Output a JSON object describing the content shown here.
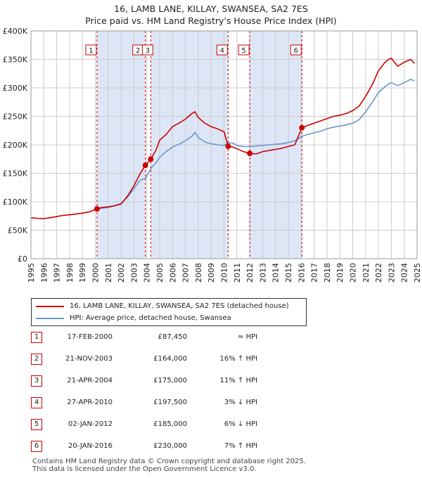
{
  "title_line1": "16, LAMB LANE, KILLAY, SWANSEA, SA2 7ES",
  "title_line2": "Price paid vs. HM Land Registry's House Price Index (HPI)",
  "colors": {
    "property": "#cc0000",
    "hpi": "#6a96cc",
    "shade": "#dde6f6",
    "grid": "#cccccc"
  },
  "legend": {
    "property": "16, LAMB LANE, KILLAY, SWANSEA, SA2 7ES (detached house)",
    "hpi": "HPI: Average price, detached house, Swansea"
  },
  "sales": [
    {
      "n": "1",
      "date": "17-FEB-2000",
      "price": "£87,450",
      "rel": "≈ HPI"
    },
    {
      "n": "2",
      "date": "21-NOV-2003",
      "price": "£164,000",
      "rel": "16% ↑ HPI"
    },
    {
      "n": "3",
      "date": "21-APR-2004",
      "price": "£175,000",
      "rel": "11% ↑ HPI"
    },
    {
      "n": "4",
      "date": "27-APR-2010",
      "price": "£197,500",
      "rel": "3% ↓ HPI"
    },
    {
      "n": "5",
      "date": "02-JAN-2012",
      "price": "£185,000",
      "rel": "6% ↓ HPI"
    },
    {
      "n": "6",
      "date": "20-JAN-2016",
      "price": "£230,000",
      "rel": "7% ↑ HPI"
    }
  ],
  "footer_line1": "Contains HM Land Registry data © Crown copyright and database right 2025.",
  "footer_line2": "This data is licensed under the Open Government Licence v3.0.",
  "chart_data": {
    "type": "line",
    "title": "16, LAMB LANE, KILLAY, SWANSEA, SA2 7ES — Price paid vs. HM Land Registry's House Price Index (HPI)",
    "xlim": [
      1995,
      2025
    ],
    "ylim": [
      0,
      400000
    ],
    "yticks": [
      {
        "v": 0,
        "label": "£0"
      },
      {
        "v": 50000,
        "label": "£50K"
      },
      {
        "v": 100000,
        "label": "£100K"
      },
      {
        "v": 150000,
        "label": "£150K"
      },
      {
        "v": 200000,
        "label": "£200K"
      },
      {
        "v": 250000,
        "label": "£250K"
      },
      {
        "v": 300000,
        "label": "£300K"
      },
      {
        "v": 350000,
        "label": "£350K"
      },
      {
        "v": 400000,
        "label": "£400K"
      }
    ],
    "xticks": [
      "1995",
      "1996",
      "1997",
      "1998",
      "1999",
      "2000",
      "2001",
      "2002",
      "2003",
      "2004",
      "2005",
      "2006",
      "2007",
      "2008",
      "2009",
      "2010",
      "2011",
      "2012",
      "2013",
      "2014",
      "2015",
      "2016",
      "2017",
      "2018",
      "2019",
      "2020",
      "2021",
      "2022",
      "2023",
      "2024",
      "2025"
    ],
    "shaded_periods": [
      [
        2000.13,
        2003.89
      ],
      [
        2004.31,
        2010.32
      ],
      [
        2012.0,
        2016.05
      ]
    ],
    "sale_markers": [
      {
        "label": "1",
        "x": 2000.13,
        "y": 87450
      },
      {
        "label": "2",
        "x": 2003.89,
        "y": 164000
      },
      {
        "label": "3",
        "x": 2004.31,
        "y": 175000
      },
      {
        "label": "4",
        "x": 2010.32,
        "y": 197500
      },
      {
        "label": "5",
        "x": 2012.0,
        "y": 185000
      },
      {
        "label": "6",
        "x": 2016.05,
        "y": 230000
      }
    ],
    "series": [
      {
        "name": "16, LAMB LANE, KILLAY, SWANSEA, SA2 7ES (detached house)",
        "color": "#cc0000",
        "x": [
          1995.0,
          1995.5,
          1996.0,
          1996.5,
          1997.0,
          1997.5,
          1998.0,
          1998.5,
          1999.0,
          1999.5,
          2000.13,
          2000.5,
          2001.0,
          2001.5,
          2002.0,
          2002.5,
          2003.0,
          2003.5,
          2003.89,
          2004.31,
          2004.7,
          2005.0,
          2005.5,
          2006.0,
          2006.5,
          2007.0,
          2007.5,
          2007.75,
          2008.0,
          2008.5,
          2009.0,
          2009.5,
          2010.0,
          2010.32,
          2010.7,
          2011.0,
          2011.5,
          2012.0,
          2012.5,
          2013.0,
          2013.5,
          2014.0,
          2014.5,
          2015.0,
          2015.5,
          2016.05,
          2016.5,
          2017.0,
          2017.5,
          2018.0,
          2018.5,
          2019.0,
          2019.5,
          2020.0,
          2020.5,
          2021.0,
          2021.5,
          2022.0,
          2022.5,
          2022.8,
          2023.0,
          2023.5,
          2024.0,
          2024.5,
          2024.8
        ],
        "y": [
          72000,
          71000,
          70500,
          72000,
          74000,
          76000,
          77000,
          78500,
          80000,
          82000,
          87450,
          90000,
          91000,
          93000,
          96000,
          110000,
          128000,
          150000,
          164000,
          175000,
          190000,
          208000,
          218000,
          232000,
          238000,
          245000,
          255000,
          258000,
          248000,
          238000,
          232000,
          228000,
          223000,
          197500,
          196000,
          193000,
          188000,
          185000,
          184000,
          188000,
          190000,
          192000,
          194000,
          197000,
          200000,
          230000,
          234000,
          238000,
          242000,
          246000,
          250000,
          252000,
          255000,
          260000,
          268000,
          285000,
          305000,
          330000,
          345000,
          350000,
          352000,
          338000,
          345000,
          350000,
          343000
        ]
      },
      {
        "name": "HPI: Average price, detached house, Swansea",
        "color": "#6a96cc",
        "x": [
          2000.13,
          2000.5,
          2001.0,
          2001.5,
          2002.0,
          2002.5,
          2003.0,
          2003.5,
          2003.89,
          2004.31,
          2004.7,
          2005.0,
          2005.5,
          2006.0,
          2006.5,
          2007.0,
          2007.5,
          2007.75,
          2008.0,
          2008.5,
          2009.0,
          2009.5,
          2010.0,
          2010.32,
          2010.7,
          2011.0,
          2011.5,
          2012.0,
          2012.5,
          2013.0,
          2013.5,
          2014.0,
          2014.5,
          2015.0,
          2015.5,
          2016.05,
          2016.5,
          2017.0,
          2017.5,
          2018.0,
          2018.5,
          2019.0,
          2019.5,
          2020.0,
          2020.5,
          2021.0,
          2021.5,
          2022.0,
          2022.5,
          2022.8,
          2023.0,
          2023.5,
          2024.0,
          2024.5,
          2024.8
        ],
        "y": [
          87450,
          88500,
          90000,
          93000,
          97000,
          108000,
          123000,
          138000,
          141000,
          158000,
          168000,
          178000,
          188000,
          196000,
          201000,
          207000,
          215000,
          222000,
          213000,
          205000,
          202000,
          200000,
          199000,
          203500,
          203000,
          199000,
          197000,
          196500,
          198000,
          199000,
          200000,
          201000,
          202000,
          204000,
          207000,
          215000,
          218000,
          221000,
          224000,
          228000,
          231000,
          233000,
          235000,
          238000,
          244000,
          258000,
          274000,
          292000,
          302000,
          307000,
          309000,
          304000,
          309000,
          315000,
          312000
        ]
      }
    ]
  }
}
